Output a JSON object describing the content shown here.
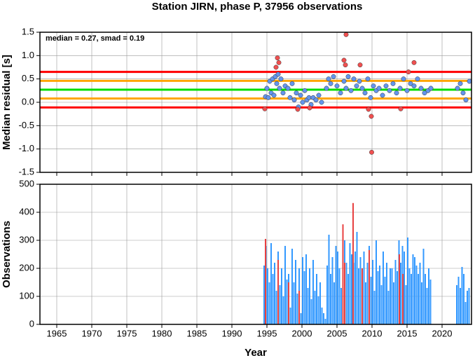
{
  "chart_data": [
    {
      "type": "scatter",
      "title": "Station JIRN, phase P, 37956 observations",
      "annotation": "median = 0.27, smad = 0.19",
      "y_label": "Median residual [s]",
      "xlim": [
        1962.6,
        2024.2
      ],
      "xticks": [
        1965,
        1970,
        1975,
        1980,
        1985,
        1990,
        1995,
        2000,
        2005,
        2010,
        2015,
        2020
      ],
      "ylim": [
        -1.5,
        1.5
      ],
      "yticks": [
        1.5,
        {
          "value": 1,
          "label": "1.0"
        },
        0.5,
        {
          "value": 0,
          "label": "0.0"
        },
        -0.5,
        {
          "value": -1,
          "label": "-1.0"
        },
        -1.5
      ],
      "grid": true,
      "reference_lines": [
        {
          "value": 0.65,
          "color": "#ff0000"
        },
        {
          "value": -0.11,
          "color": "#ff0000"
        },
        {
          "value": 0.46,
          "color": "#ffa500"
        },
        {
          "value": 0.08,
          "color": "#ffa500"
        },
        {
          "value": 0.27,
          "color": "#00dd00"
        }
      ],
      "series": [
        {
          "color": "#6495ed",
          "x": [
            1994.8,
            1995.0,
            1995.2,
            1995.4,
            1995.6,
            1995.8,
            1996.0,
            1996.2,
            1996.4,
            1996.6,
            1996.8,
            1997.0,
            1997.3,
            1997.6,
            1998.0,
            1998.3,
            1998.6,
            1998.9,
            1999.2,
            1999.5,
            1999.8,
            2000.1,
            2000.4,
            2000.7,
            2001.0,
            2001.3,
            2001.6,
            2002.0,
            2002.4,
            2002.8,
            2003.5,
            2003.8,
            2004.1,
            2004.5,
            2005.0,
            2005.5,
            2006.0,
            2006.3,
            2006.6,
            2007.0,
            2007.4,
            2007.8,
            2008.2,
            2008.6,
            2009.0,
            2009.4,
            2009.8,
            2010.2,
            2010.6,
            2011.0,
            2011.5,
            2012.0,
            2012.5,
            2013.0,
            2013.5,
            2014.0,
            2014.5,
            2015.0,
            2015.5,
            2016.0,
            2016.5,
            2017.0,
            2017.5,
            2018.0,
            2018.4,
            2022.2,
            2022.6,
            2023.0,
            2023.4,
            2023.9
          ],
          "values": [
            0.12,
            0.3,
            0.1,
            0.45,
            0.2,
            0.5,
            0.15,
            0.55,
            0.4,
            0.6,
            0.3,
            0.5,
            0.2,
            0.35,
            0.3,
            0.1,
            0.4,
            0.05,
            0.2,
            -0.1,
            0.15,
            0.0,
            0.25,
            0.05,
            0.1,
            -0.05,
            0.1,
            0.05,
            0.15,
            0.0,
            0.3,
            0.5,
            0.4,
            0.55,
            0.35,
            0.2,
            0.45,
            0.3,
            0.55,
            0.25,
            0.5,
            0.35,
            0.45,
            0.3,
            0.2,
            0.5,
            0.1,
            0.35,
            0.25,
            0.3,
            0.15,
            0.35,
            0.25,
            0.4,
            0.2,
            0.3,
            0.5,
            0.25,
            0.4,
            0.35,
            0.5,
            0.3,
            0.2,
            0.25,
            0.3,
            0.3,
            0.4,
            0.2,
            0.05,
            0.45
          ]
        },
        {
          "color": "#f05050",
          "x": [
            1994.7,
            1996.5,
            1996.7,
            1996.3,
            1999.4,
            2001.1,
            2006.0,
            2006.3,
            2006.2,
            2008.3,
            2009.5,
            2009.9,
            2009.95,
            2014.1,
            2015.2,
            2016.0
          ],
          "values": [
            -0.14,
            0.95,
            0.85,
            0.75,
            -0.15,
            -0.12,
            0.9,
            1.45,
            0.8,
            0.8,
            -0.15,
            -0.3,
            -1.07,
            -0.14,
            0.65,
            0.85
          ]
        }
      ]
    },
    {
      "type": "bar",
      "y_label": "Observations",
      "x_label": "Year",
      "xlim": [
        1962.6,
        2024.2
      ],
      "xticks": [
        1965,
        1970,
        1975,
        1980,
        1985,
        1990,
        1995,
        2000,
        2005,
        2010,
        2015,
        2020
      ],
      "ylim": [
        0,
        500
      ],
      "yticks": [
        0,
        100,
        200,
        300,
        400,
        500
      ],
      "grid": true,
      "series": [
        {
          "color": "#3399ff",
          "x": [
            1994.6,
            1994.85,
            1995.1,
            1995.35,
            1995.6,
            1995.85,
            1996.1,
            1996.35,
            1996.6,
            1996.85,
            1997.1,
            1997.35,
            1997.6,
            1997.85,
            1998.1,
            1998.35,
            1998.6,
            1998.85,
            1999.1,
            1999.35,
            1999.6,
            1999.85,
            2000.1,
            2000.35,
            2000.6,
            2000.85,
            2001.1,
            2001.35,
            2001.6,
            2001.85,
            2002.1,
            2002.35,
            2002.6,
            2002.85,
            2003.1,
            2003.35,
            2003.6,
            2003.85,
            2004.1,
            2004.35,
            2004.6,
            2004.85,
            2005.1,
            2005.35,
            2005.6,
            2005.85,
            2006.1,
            2006.35,
            2006.6,
            2006.85,
            2007.1,
            2007.35,
            2007.6,
            2007.85,
            2008.1,
            2008.35,
            2008.6,
            2008.85,
            2009.1,
            2009.35,
            2009.6,
            2009.85,
            2010.1,
            2010.35,
            2010.6,
            2010.85,
            2011.1,
            2011.35,
            2011.6,
            2011.85,
            2012.1,
            2012.35,
            2012.6,
            2012.85,
            2013.1,
            2013.35,
            2013.6,
            2013.85,
            2014.1,
            2014.35,
            2014.6,
            2014.85,
            2015.1,
            2015.35,
            2015.6,
            2015.85,
            2016.1,
            2016.35,
            2016.6,
            2016.85,
            2017.1,
            2017.35,
            2017.6,
            2017.85,
            2018.1,
            2018.35,
            2022.1,
            2022.35,
            2022.6,
            2022.85,
            2023.1,
            2023.35,
            2023.6,
            2023.85
          ],
          "values": [
            210,
            280,
            200,
            150,
            290,
            180,
            220,
            120,
            260,
            140,
            200,
            100,
            280,
            160,
            180,
            60,
            270,
            150,
            230,
            110,
            200,
            40,
            240,
            190,
            250,
            130,
            200,
            90,
            230,
            120,
            180,
            100,
            150,
            60,
            40,
            20,
            210,
            320,
            180,
            240,
            150,
            280,
            260,
            200,
            130,
            230,
            300,
            220,
            180,
            290,
            250,
            220,
            260,
            330,
            200,
            240,
            190,
            260,
            150,
            220,
            280,
            170,
            230,
            120,
            300,
            190,
            210,
            140,
            260,
            170,
            220,
            120,
            200,
            200,
            150,
            230,
            190,
            300,
            220,
            280,
            260,
            140,
            310,
            200,
            180,
            250,
            240,
            210,
            180,
            220,
            150,
            270,
            180,
            130,
            200,
            160,
            140,
            170,
            130,
            205,
            180,
            80,
            120,
            130
          ]
        },
        {
          "color": "#e84040",
          "x": [
            1994.8,
            1996.6,
            1998.1,
            1999.6,
            2005.85,
            2006.1,
            2007.3,
            2008.6,
            2009.6,
            2013.9,
            2014.4
          ],
          "values": [
            305,
            230,
            150,
            120,
            357,
            220,
            433,
            200,
            265,
            250,
            180
          ]
        }
      ]
    }
  ]
}
